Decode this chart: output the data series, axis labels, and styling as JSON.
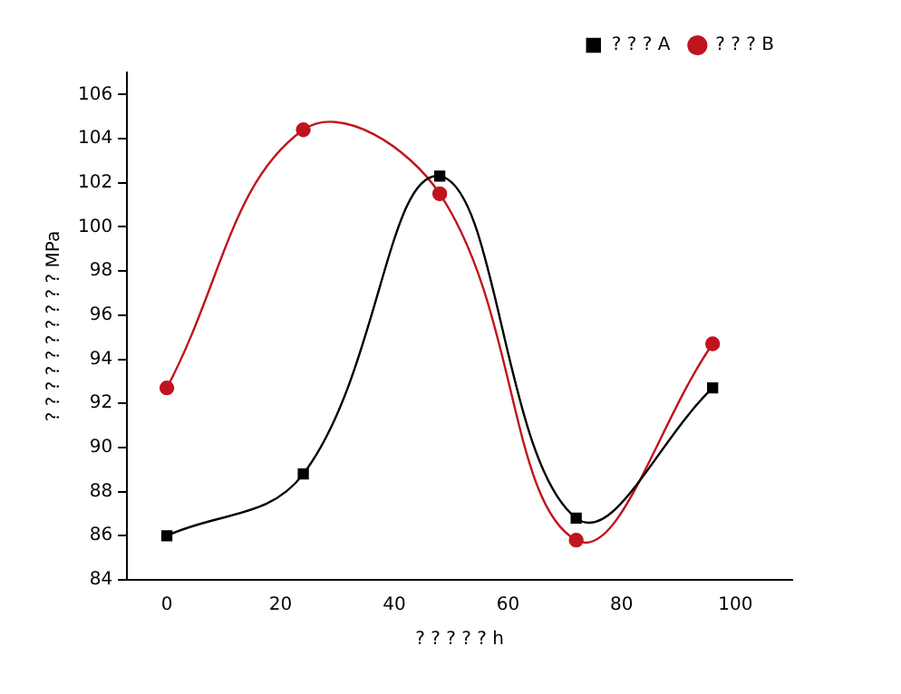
{
  "chart_data": {
    "type": "line",
    "xlabel": "? ? ? ? ? h",
    "ylabel": "? ? ? ? ? ? ? ? ? ? MPa",
    "x": [
      0,
      24,
      48,
      72,
      96
    ],
    "series": [
      {
        "name": "? ? ? A",
        "color": "#000000",
        "marker": "square",
        "values": [
          86.0,
          88.8,
          102.3,
          86.8,
          92.7
        ]
      },
      {
        "name": "? ? ? B",
        "color": "#c0141e",
        "marker": "circle",
        "values": [
          92.7,
          104.4,
          101.5,
          85.8,
          94.7
        ]
      }
    ],
    "xlim": [
      -7,
      110
    ],
    "xticks": [
      0,
      20,
      40,
      60,
      80,
      100
    ],
    "ylim": [
      84,
      107
    ],
    "yticks": [
      84,
      86,
      88,
      90,
      92,
      94,
      96,
      98,
      100,
      102,
      104,
      106
    ],
    "grid": false,
    "legend": "top right"
  }
}
